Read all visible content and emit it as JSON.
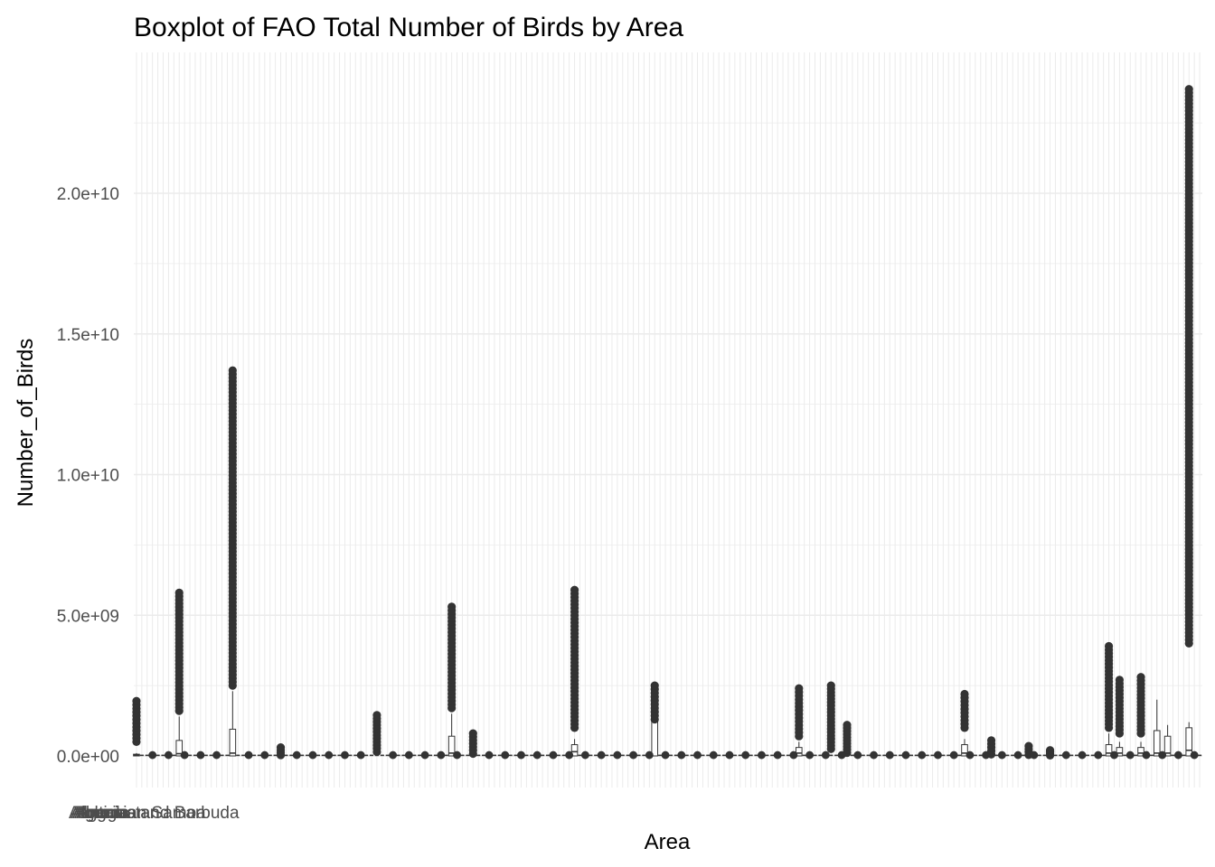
{
  "chart_data": {
    "type": "boxplot",
    "title": "Boxplot of FAO Total Number of Birds by Area",
    "xlabel": "Area",
    "ylabel": "Number_of_Birds",
    "ylim": [
      -1000000000,
      24500000000
    ],
    "y_ticks": [
      0,
      5000000000,
      10000000000,
      15000000000,
      20000000000
    ],
    "y_tick_labels": [
      "0.0e+00",
      "5.0e+09",
      "1.0e+10",
      "1.5e+10",
      "2.0e+10"
    ],
    "grid": true,
    "category_count": 200,
    "outlier_color": "#333333",
    "grid_color": "#ebebeb",
    "box_stroke": "#333333",
    "notable_groups": [
      {
        "index": 0,
        "median": 40000000,
        "q3": 60000000,
        "whisker_max": 100000000,
        "outliers": [
          500000000,
          800000000,
          1000000000,
          1200000000,
          1400000000,
          1600000000,
          1800000000,
          1950000000
        ]
      },
      {
        "index": 8,
        "median": 80000000,
        "q3": 550000000,
        "whisker_max": 1400000000,
        "outliers": [
          1600000000,
          2000000000,
          2500000000,
          3000000000,
          3500000000,
          4000000000,
          4500000000,
          5000000000,
          5400000000,
          5800000000
        ]
      },
      {
        "index": 18,
        "median": 100000000,
        "q3": 950000000,
        "whisker_max": 2300000000,
        "outliers": [
          2500000000,
          3000000000,
          3700000000,
          4200000000,
          4700000000,
          5300000000,
          5700000000,
          6300000000,
          6700000000,
          7200000000,
          7500000000,
          8400000000,
          9000000000,
          9500000000,
          10000000000,
          10800000000,
          11300000000,
          12000000000,
          13000000000,
          13300000000,
          13700000000
        ]
      },
      {
        "index": 59,
        "median": 100000000,
        "q3": 700000000,
        "whisker_max": 1500000000,
        "outliers": [
          1700000000,
          2000000000,
          2500000000,
          3000000000,
          3500000000,
          4000000000,
          4500000000,
          5000000000,
          5300000000
        ]
      },
      {
        "index": 82,
        "median": 150000000,
        "q3": 400000000,
        "whisker_max": 600000000,
        "outliers": [
          1000000000,
          1500000000,
          2000000000,
          2500000000,
          3000000000,
          3500000000,
          4000000000,
          4500000000,
          5000000000,
          5500000000,
          5900000000
        ]
      },
      {
        "index": 97,
        "median": 1500000000,
        "q3": 2000000000,
        "whisker_max": 2300000000,
        "outliers": [
          1300000000,
          1600000000,
          1900000000,
          2200000000,
          2500000000
        ]
      },
      {
        "index": 124,
        "median": 100000000,
        "q3": 300000000,
        "whisker_max": 500000000,
        "outliers": [
          700000000,
          1000000000,
          1500000000,
          1800000000,
          2100000000,
          2400000000
        ]
      },
      {
        "index": 155,
        "median": 100000000,
        "q3": 400000000,
        "whisker_max": 600000000,
        "outliers": [
          1000000000,
          1300000000,
          1600000000,
          1900000000,
          2200000000
        ]
      },
      {
        "index": 182,
        "median": 100000000,
        "q3": 400000000,
        "whisker_max": 800000000,
        "outliers": [
          1000000000,
          1500000000,
          2000000000,
          2500000000,
          3000000000,
          3500000000,
          3900000000
        ]
      },
      {
        "index": 184,
        "median": 100000000,
        "q3": 300000000,
        "whisker_max": 500000000,
        "outliers": [
          800000000,
          1200000000,
          1600000000,
          2000000000,
          2400000000,
          2700000000
        ]
      },
      {
        "index": 188,
        "median": 100000000,
        "q3": 300000000,
        "whisker_max": 500000000,
        "outliers": [
          800000000,
          1200000000,
          1600000000,
          2000000000,
          2400000000,
          2800000000
        ]
      },
      {
        "index": 191,
        "median": 100000000,
        "q3": 900000000,
        "whisker_max": 2000000000,
        "outliers": []
      },
      {
        "index": 193,
        "median": 100000000,
        "q3": 700000000,
        "whisker_max": 1100000000,
        "outliers": []
      },
      {
        "index": 197,
        "median": 200000000,
        "q3": 1000000000,
        "whisker_max": 1200000000,
        "outliers": [
          4000000000,
          5000000000,
          6000000000,
          7000000000,
          8000000000,
          9000000000,
          10000000000,
          11000000000,
          12000000000,
          13000000000,
          14000000000,
          15000000000,
          16000000000,
          17500000000,
          19000000000,
          20000000000,
          21000000000,
          22000000000,
          23000000000,
          23700000000
        ]
      }
    ],
    "minor_outlier_groups": [
      {
        "index": 27,
        "max": 300000000
      },
      {
        "index": 45,
        "max": 1450000000
      },
      {
        "index": 63,
        "max": 800000000
      },
      {
        "index": 130,
        "max": 2500000000
      },
      {
        "index": 133,
        "max": 1100000000
      },
      {
        "index": 160,
        "max": 550000000
      },
      {
        "index": 167,
        "max": 350000000
      },
      {
        "index": 171,
        "max": 200000000
      }
    ],
    "visible_category_labels": [
      "Afghanistan",
      "Albania",
      "Algeria",
      "American Samoa",
      "Angola",
      "Antigua and Barbuda"
    ]
  }
}
